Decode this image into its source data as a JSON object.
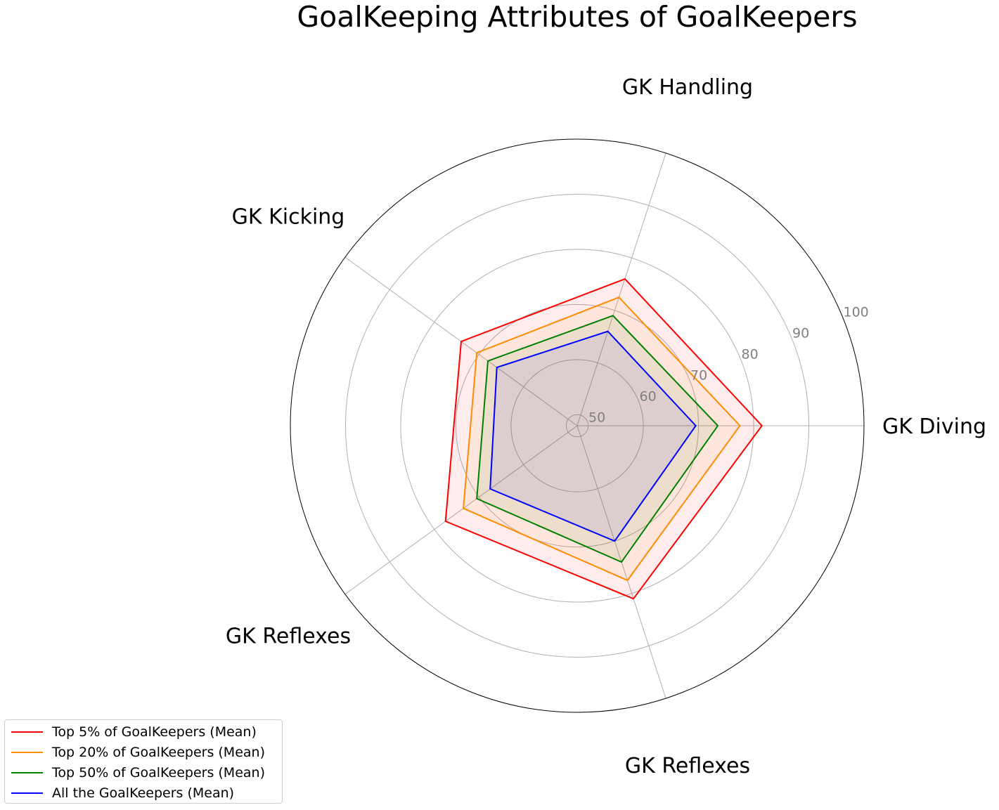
{
  "chart_data": {
    "type": "radar",
    "title": "GoalKeeping Attributes of GoalKeepers",
    "categories": [
      "GK Diving",
      "GK Handling",
      "GK Kicking",
      "GK Reflexes",
      "GK Reflexes"
    ],
    "rlim": [
      48,
      100
    ],
    "rticks": [
      50,
      60,
      70,
      80,
      90,
      100
    ],
    "rtick_labels": [
      "50",
      "60",
      "70",
      "80",
      "90",
      "100"
    ],
    "grid": true,
    "legend_position": "lower-left",
    "series": [
      {
        "name": "Top 5% of GoalKeepers (Mean)",
        "color": "#ff0000",
        "values": [
          81.5,
          76.0,
          74.0,
          77.5,
          81.0
        ]
      },
      {
        "name": "Top 20% of GoalKeepers (Mean)",
        "color": "#ff8c00",
        "values": [
          77.5,
          72.5,
          70.5,
          73.5,
          77.5
        ]
      },
      {
        "name": "Top 50% of GoalKeepers (Mean)",
        "color": "#008000",
        "values": [
          73.5,
          69.0,
          68.0,
          70.5,
          74.0
        ]
      },
      {
        "name": "All the GoalKeepers (Mean)",
        "color": "#0000ff",
        "values": [
          69.5,
          66.0,
          66.0,
          67.5,
          70.0
        ]
      }
    ]
  }
}
